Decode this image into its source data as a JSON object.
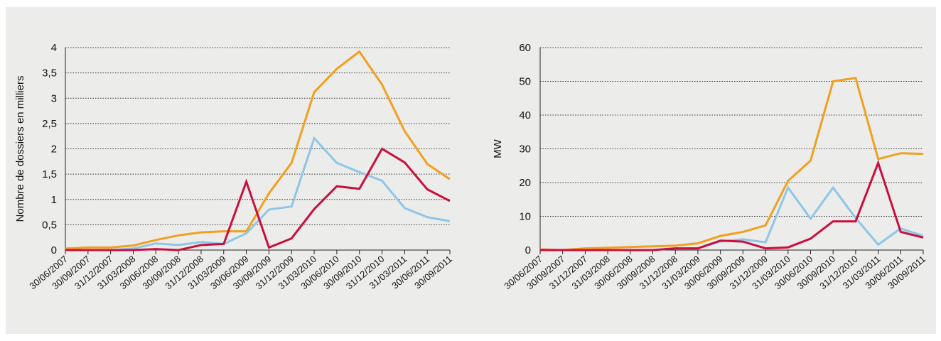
{
  "chart_data": [
    {
      "type": "line",
      "title": "",
      "xlabel": "",
      "ylabel": "Nombre de dossiers en milliers",
      "ylim": [
        0,
        4
      ],
      "yticks": [
        0,
        0.5,
        1,
        1.5,
        2,
        2.5,
        3,
        3.5,
        4
      ],
      "yticklabels": [
        "0",
        "0,5",
        "1",
        "1,5",
        "2",
        "2,5",
        "3",
        "3,5",
        "4"
      ],
      "grid": true,
      "categories": [
        "30/06/2007",
        "30/09/2007",
        "31/12/2007",
        "31/03/2008",
        "30/06/2008",
        "30/09/2008",
        "31/12/2008",
        "31/03/2009",
        "30/06/2009",
        "30/09/2009",
        "31/12/2009",
        "31/03/2010",
        "30/06/2010",
        "30/09/2010",
        "31/12/2010",
        "31/03/2011",
        "30/06/2011",
        "30/09/2011"
      ],
      "series": [
        {
          "color": "#f0a01e",
          "values": [
            0.03,
            0.05,
            0.05,
            0.09,
            0.2,
            0.29,
            0.35,
            0.37,
            0.37,
            1.12,
            1.72,
            3.12,
            3.58,
            3.92,
            3.27,
            2.35,
            1.7,
            1.4
          ]
        },
        {
          "color": "#8ec6e6",
          "values": [
            0.0,
            0.0,
            0.0,
            0.03,
            0.13,
            0.1,
            0.16,
            0.12,
            0.33,
            0.8,
            0.86,
            2.21,
            1.72,
            1.54,
            1.37,
            0.83,
            0.65,
            0.57
          ]
        },
        {
          "color": "#c8103e",
          "values": [
            0.0,
            0.0,
            0.0,
            0.0,
            0.02,
            0.0,
            0.1,
            0.12,
            1.35,
            0.05,
            0.23,
            0.81,
            1.26,
            1.21,
            2.0,
            1.73,
            1.2,
            0.97
          ]
        }
      ]
    },
    {
      "type": "line",
      "title": "",
      "xlabel": "",
      "ylabel": "MW",
      "ylim": [
        0,
        60
      ],
      "yticks": [
        0,
        10,
        20,
        30,
        40,
        50,
        60
      ],
      "yticklabels": [
        "0",
        "10",
        "20",
        "30",
        "40",
        "50",
        "60"
      ],
      "grid": true,
      "categories": [
        "30/06/2007",
        "30/09/2007",
        "31/12/2007",
        "31/03/2008",
        "30/06/2008",
        "30/09/2008",
        "31/12/2008",
        "31/03/2009",
        "30/06/2009",
        "30/09/2009",
        "31/12/2009",
        "31/03/2010",
        "30/06/2010",
        "30/09/2010",
        "31/12/2010",
        "31/03/2011",
        "30/06/2011",
        "30/09/2011"
      ],
      "series": [
        {
          "color": "#f0a01e",
          "values": [
            0.2,
            0.0,
            0.5,
            0.7,
            0.9,
            1.1,
            1.3,
            2.0,
            4.2,
            5.4,
            7.3,
            20.5,
            26.5,
            50.0,
            51.0,
            27.0,
            28.7,
            28.5
          ]
        },
        {
          "color": "#8ec6e6",
          "values": [
            0.0,
            0.0,
            0.0,
            0.0,
            0.0,
            0.0,
            0.5,
            0.5,
            2.5,
            3.2,
            2.3,
            18.5,
            9.3,
            18.5,
            9.5,
            1.6,
            6.4,
            4.2
          ]
        },
        {
          "color": "#c8103e",
          "values": [
            0.0,
            0.0,
            0.0,
            0.0,
            0.0,
            0.0,
            0.5,
            0.5,
            2.8,
            2.5,
            0.5,
            0.8,
            3.4,
            8.5,
            8.5,
            25.8,
            5.4,
            3.7
          ]
        }
      ]
    }
  ]
}
